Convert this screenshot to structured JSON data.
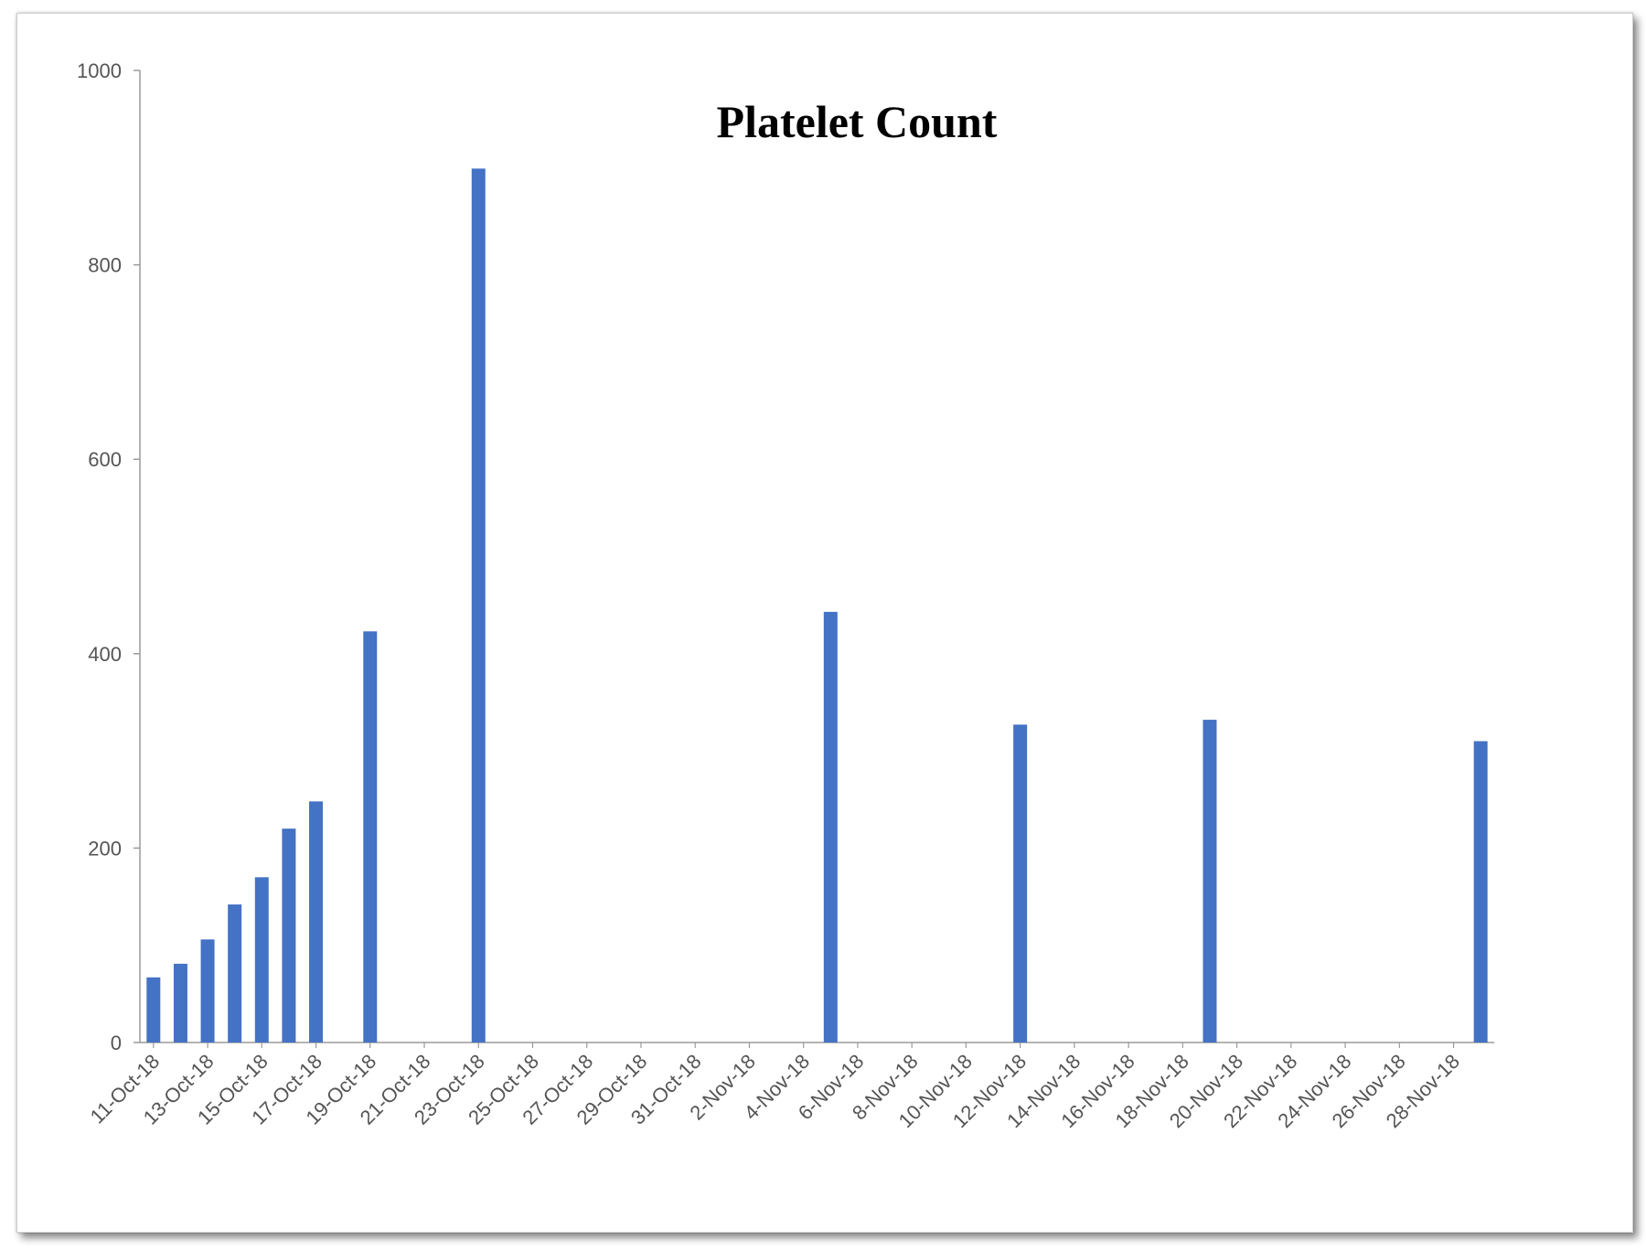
{
  "chart_data": {
    "type": "bar",
    "title": "Platelet Count",
    "xlabel": "",
    "ylabel": "",
    "ylim": [
      0,
      1000
    ],
    "yticks": [
      0,
      200,
      400,
      600,
      800,
      1000
    ],
    "x_range": [
      "2018-10-11",
      "2018-11-29"
    ],
    "x_tick_labels": [
      "11-Oct-18",
      "13-Oct-18",
      "15-Oct-18",
      "17-Oct-18",
      "19-Oct-18",
      "21-Oct-18",
      "23-Oct-18",
      "25-Oct-18",
      "27-Oct-18",
      "29-Oct-18",
      "31-Oct-18",
      "2-Nov-18",
      "4-Nov-18",
      "6-Nov-18",
      "8-Nov-18",
      "10-Nov-18",
      "12-Nov-18",
      "14-Nov-18",
      "16-Nov-18",
      "18-Nov-18",
      "20-Nov-18",
      "22-Nov-18",
      "24-Nov-18",
      "26-Nov-18",
      "28-Nov-18"
    ],
    "x_tick_dates": [
      "2018-10-11",
      "2018-10-13",
      "2018-10-15",
      "2018-10-17",
      "2018-10-19",
      "2018-10-21",
      "2018-10-23",
      "2018-10-25",
      "2018-10-27",
      "2018-10-29",
      "2018-10-31",
      "2018-11-02",
      "2018-11-04",
      "2018-11-06",
      "2018-11-08",
      "2018-11-10",
      "2018-11-12",
      "2018-11-14",
      "2018-11-16",
      "2018-11-18",
      "2018-11-20",
      "2018-11-22",
      "2018-11-24",
      "2018-11-26",
      "2018-11-28"
    ],
    "bar_color": "#4472C4",
    "series": [
      {
        "x": [
          "2018-10-11",
          "2018-10-12",
          "2018-10-13",
          "2018-10-14",
          "2018-10-15",
          "2018-10-16",
          "2018-10-17",
          "2018-10-19",
          "2018-10-23",
          "2018-11-05",
          "2018-11-12",
          "2018-11-19",
          "2018-11-29"
        ],
        "values": [
          67,
          81,
          106,
          142,
          170,
          220,
          248,
          423,
          899,
          443,
          327,
          332,
          310
        ]
      }
    ],
    "grid": false,
    "legend": "none"
  }
}
